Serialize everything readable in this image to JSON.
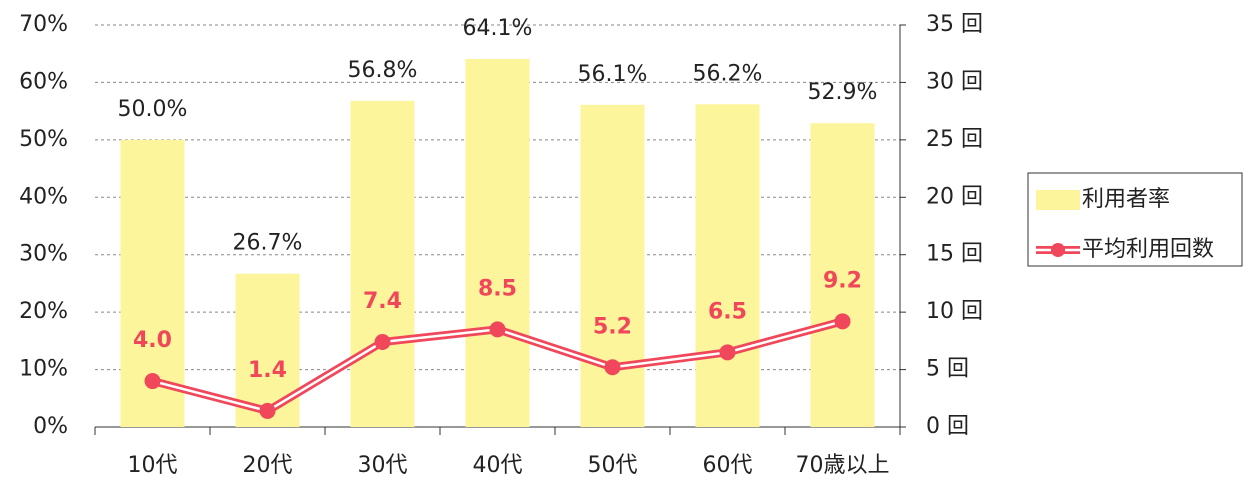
{
  "chart_data": {
    "type": "bar",
    "categories": [
      "10代",
      "20代",
      "30代",
      "40代",
      "50代",
      "60代",
      "70歳以上"
    ],
    "series": [
      {
        "name": "利用者率",
        "type": "bar",
        "axis": "y",
        "color": "#fdf59c",
        "values": [
          50.0,
          26.7,
          56.8,
          64.1,
          56.1,
          56.2,
          52.9
        ],
        "value_labels": [
          "50.0%",
          "26.7%",
          "56.8%",
          "64.1%",
          "56.1%",
          "56.2%",
          "52.9%"
        ]
      },
      {
        "name": "平均利用回数",
        "type": "line",
        "axis": "y2",
        "color": "#f0475a",
        "values": [
          4.0,
          1.4,
          7.4,
          8.5,
          5.2,
          6.5,
          9.2
        ],
        "value_labels": [
          "4.0",
          "1.4",
          "7.4",
          "8.5",
          "5.2",
          "6.5",
          "9.2"
        ]
      }
    ],
    "ylim": [
      0,
      70
    ],
    "yticks": [
      {
        "value": 0,
        "label": "0%"
      },
      {
        "value": 10,
        "label": "10%"
      },
      {
        "value": 20,
        "label": "20%"
      },
      {
        "value": 30,
        "label": "30%"
      },
      {
        "value": 40,
        "label": "40%"
      },
      {
        "value": 50,
        "label": "50%"
      },
      {
        "value": 60,
        "label": "60%"
      },
      {
        "value": 70,
        "label": "70%"
      }
    ],
    "y2lim": [
      0,
      35
    ],
    "y2ticks": [
      {
        "value": 0,
        "label": "0 回"
      },
      {
        "value": 5,
        "label": "5 回"
      },
      {
        "value": 10,
        "label": "10 回"
      },
      {
        "value": 15,
        "label": "15 回"
      },
      {
        "value": 20,
        "label": "20 回"
      },
      {
        "value": 25,
        "label": "25 回"
      },
      {
        "value": 30,
        "label": "30 回"
      },
      {
        "value": 35,
        "label": "35 回"
      }
    ],
    "grid": true,
    "legend": "right"
  }
}
